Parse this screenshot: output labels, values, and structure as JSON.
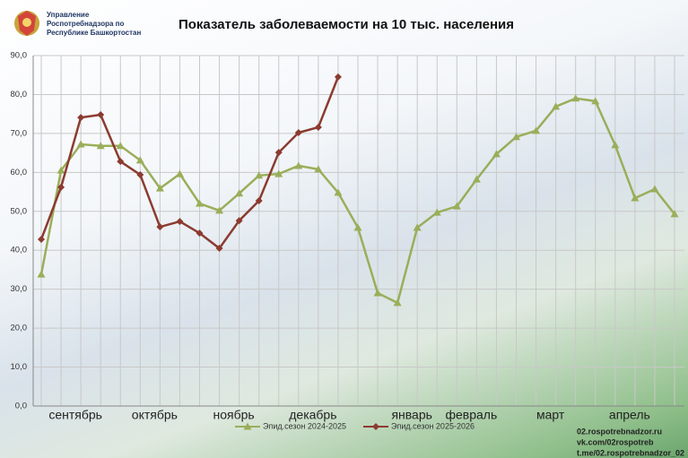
{
  "header": {
    "org": [
      "Управление",
      "Роспотребнадзора по",
      "Республике Башкортостан"
    ]
  },
  "footer": {
    "links": [
      "02.rospotrebnadzor.ru",
      "vk.com/02rospotreb",
      "t.me/02.rospotrebnadzor_02"
    ]
  },
  "chart_data": {
    "type": "line",
    "title": "Показатель заболеваемости на 10 тыс. населения",
    "categories": [
      null,
      null,
      "сентябрь",
      null,
      null,
      null,
      "октябрь",
      null,
      null,
      null,
      "ноябрь",
      null,
      null,
      null,
      "декабрь",
      null,
      null,
      null,
      null,
      "январь",
      null,
      null,
      "февраль",
      null,
      null,
      null,
      "март",
      null,
      null,
      null,
      "апрель",
      null,
      null
    ],
    "series": [
      {
        "name": "Эпид.сезон 2024-2025",
        "color": "#9aae5a",
        "marker": "triangle",
        "values": [
          33.8,
          60.5,
          67.2,
          66.8,
          66.8,
          63.1,
          55.9,
          59.6,
          52.0,
          50.2,
          54.6,
          59.2,
          59.6,
          61.7,
          60.8,
          54.8,
          45.8,
          29.0,
          26.5,
          45.8,
          49.7,
          51.3,
          58.2,
          64.7,
          69.1,
          70.7,
          76.9,
          79.0,
          78.3,
          67.0,
          53.4,
          55.7,
          49.3
        ]
      },
      {
        "name": "Эпид.сезон 2025-2026",
        "color": "#8c3b30",
        "marker": "diamond",
        "values": [
          42.8,
          56.2,
          74.1,
          74.8,
          62.8,
          59.4,
          46.0,
          47.4,
          44.4,
          40.5,
          47.6,
          52.7,
          65.1,
          70.2,
          71.6,
          84.5,
          null,
          null,
          null,
          null,
          null,
          null,
          null,
          null,
          null,
          null,
          null,
          null,
          null,
          null,
          null,
          null,
          null
        ]
      }
    ],
    "ylim": [
      0,
      90
    ],
    "yticks": [
      {
        "value": 0,
        "label": "0,0"
      },
      {
        "value": 10,
        "label": "10,0"
      },
      {
        "value": 20,
        "label": "20,0"
      },
      {
        "value": 30,
        "label": "30,0"
      },
      {
        "value": 40,
        "label": "40,0"
      },
      {
        "value": 50,
        "label": "50,0"
      },
      {
        "value": 60,
        "label": "60,0"
      },
      {
        "value": 70,
        "label": "70,0"
      },
      {
        "value": 80,
        "label": "80,0"
      },
      {
        "value": 90,
        "label": "90,0"
      }
    ],
    "grid": true,
    "legend": "bottom"
  }
}
